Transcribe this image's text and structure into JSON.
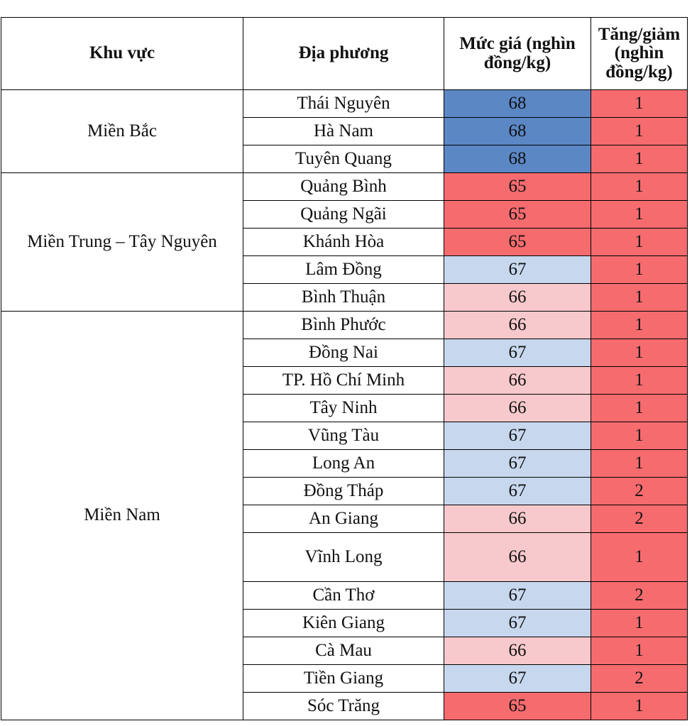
{
  "headers": {
    "region": "Khu vực",
    "locality": "Địa phương",
    "price": "Mức giá (nghìn đồng/kg)",
    "change": "Tăng/giảm (nghìn đồng/kg)"
  },
  "colors": {
    "dark_blue": "#5b87c5",
    "red": "#f66b6e",
    "light_blue": "#c7d8ee",
    "pink": "#f7c9cc"
  },
  "regions": [
    {
      "name": "Miền Bắc",
      "rows": [
        {
          "locality": "Thái Nguyên",
          "price": "68",
          "change": "1",
          "color": "dark_blue"
        },
        {
          "locality": "Hà Nam",
          "price": "68",
          "change": "1",
          "color": "dark_blue"
        },
        {
          "locality": "Tuyên Quang",
          "price": "68",
          "change": "1",
          "color": "dark_blue"
        }
      ]
    },
    {
      "name": "Miền Trung – Tây Nguyên",
      "rows": [
        {
          "locality": "Quảng Bình",
          "price": "65",
          "change": "1",
          "color": "red"
        },
        {
          "locality": "Quảng Ngãi",
          "price": "65",
          "change": "1",
          "color": "red"
        },
        {
          "locality": "Khánh Hòa",
          "price": "65",
          "change": "1",
          "color": "red"
        },
        {
          "locality": "Lâm Đồng",
          "price": "67",
          "change": "1",
          "color": "light_blue"
        },
        {
          "locality": "Bình Thuận",
          "price": "66",
          "change": "1",
          "color": "pink"
        }
      ]
    },
    {
      "name": "Miền Nam",
      "rows": [
        {
          "locality": "Bình Phước",
          "price": "66",
          "change": "1",
          "color": "pink"
        },
        {
          "locality": "Đồng Nai",
          "price": "67",
          "change": "1",
          "color": "light_blue"
        },
        {
          "locality": "TP. Hồ Chí Minh",
          "price": "66",
          "change": "1",
          "color": "pink"
        },
        {
          "locality": "Tây Ninh",
          "price": "66",
          "change": "1",
          "color": "pink"
        },
        {
          "locality": "Vũng Tàu",
          "price": "67",
          "change": "1",
          "color": "light_blue"
        },
        {
          "locality": "Long An",
          "price": "67",
          "change": "1",
          "color": "light_blue"
        },
        {
          "locality": "Đồng Tháp",
          "price": "67",
          "change": "2",
          "color": "light_blue"
        },
        {
          "locality": "An Giang",
          "price": "66",
          "change": "2",
          "color": "pink"
        },
        {
          "locality": "Vĩnh Long",
          "price": "66",
          "change": "1",
          "color": "pink"
        },
        {
          "locality": "Cần Thơ",
          "price": "67",
          "change": "2",
          "color": "light_blue"
        },
        {
          "locality": "Kiên Giang",
          "price": "67",
          "change": "1",
          "color": "light_blue"
        },
        {
          "locality": "Cà Mau",
          "price": "66",
          "change": "1",
          "color": "pink"
        },
        {
          "locality": "Tiền Giang",
          "price": "67",
          "change": "2",
          "color": "light_blue"
        },
        {
          "locality": "Sóc Trăng",
          "price": "65",
          "change": "1",
          "color": "red"
        }
      ]
    }
  ]
}
